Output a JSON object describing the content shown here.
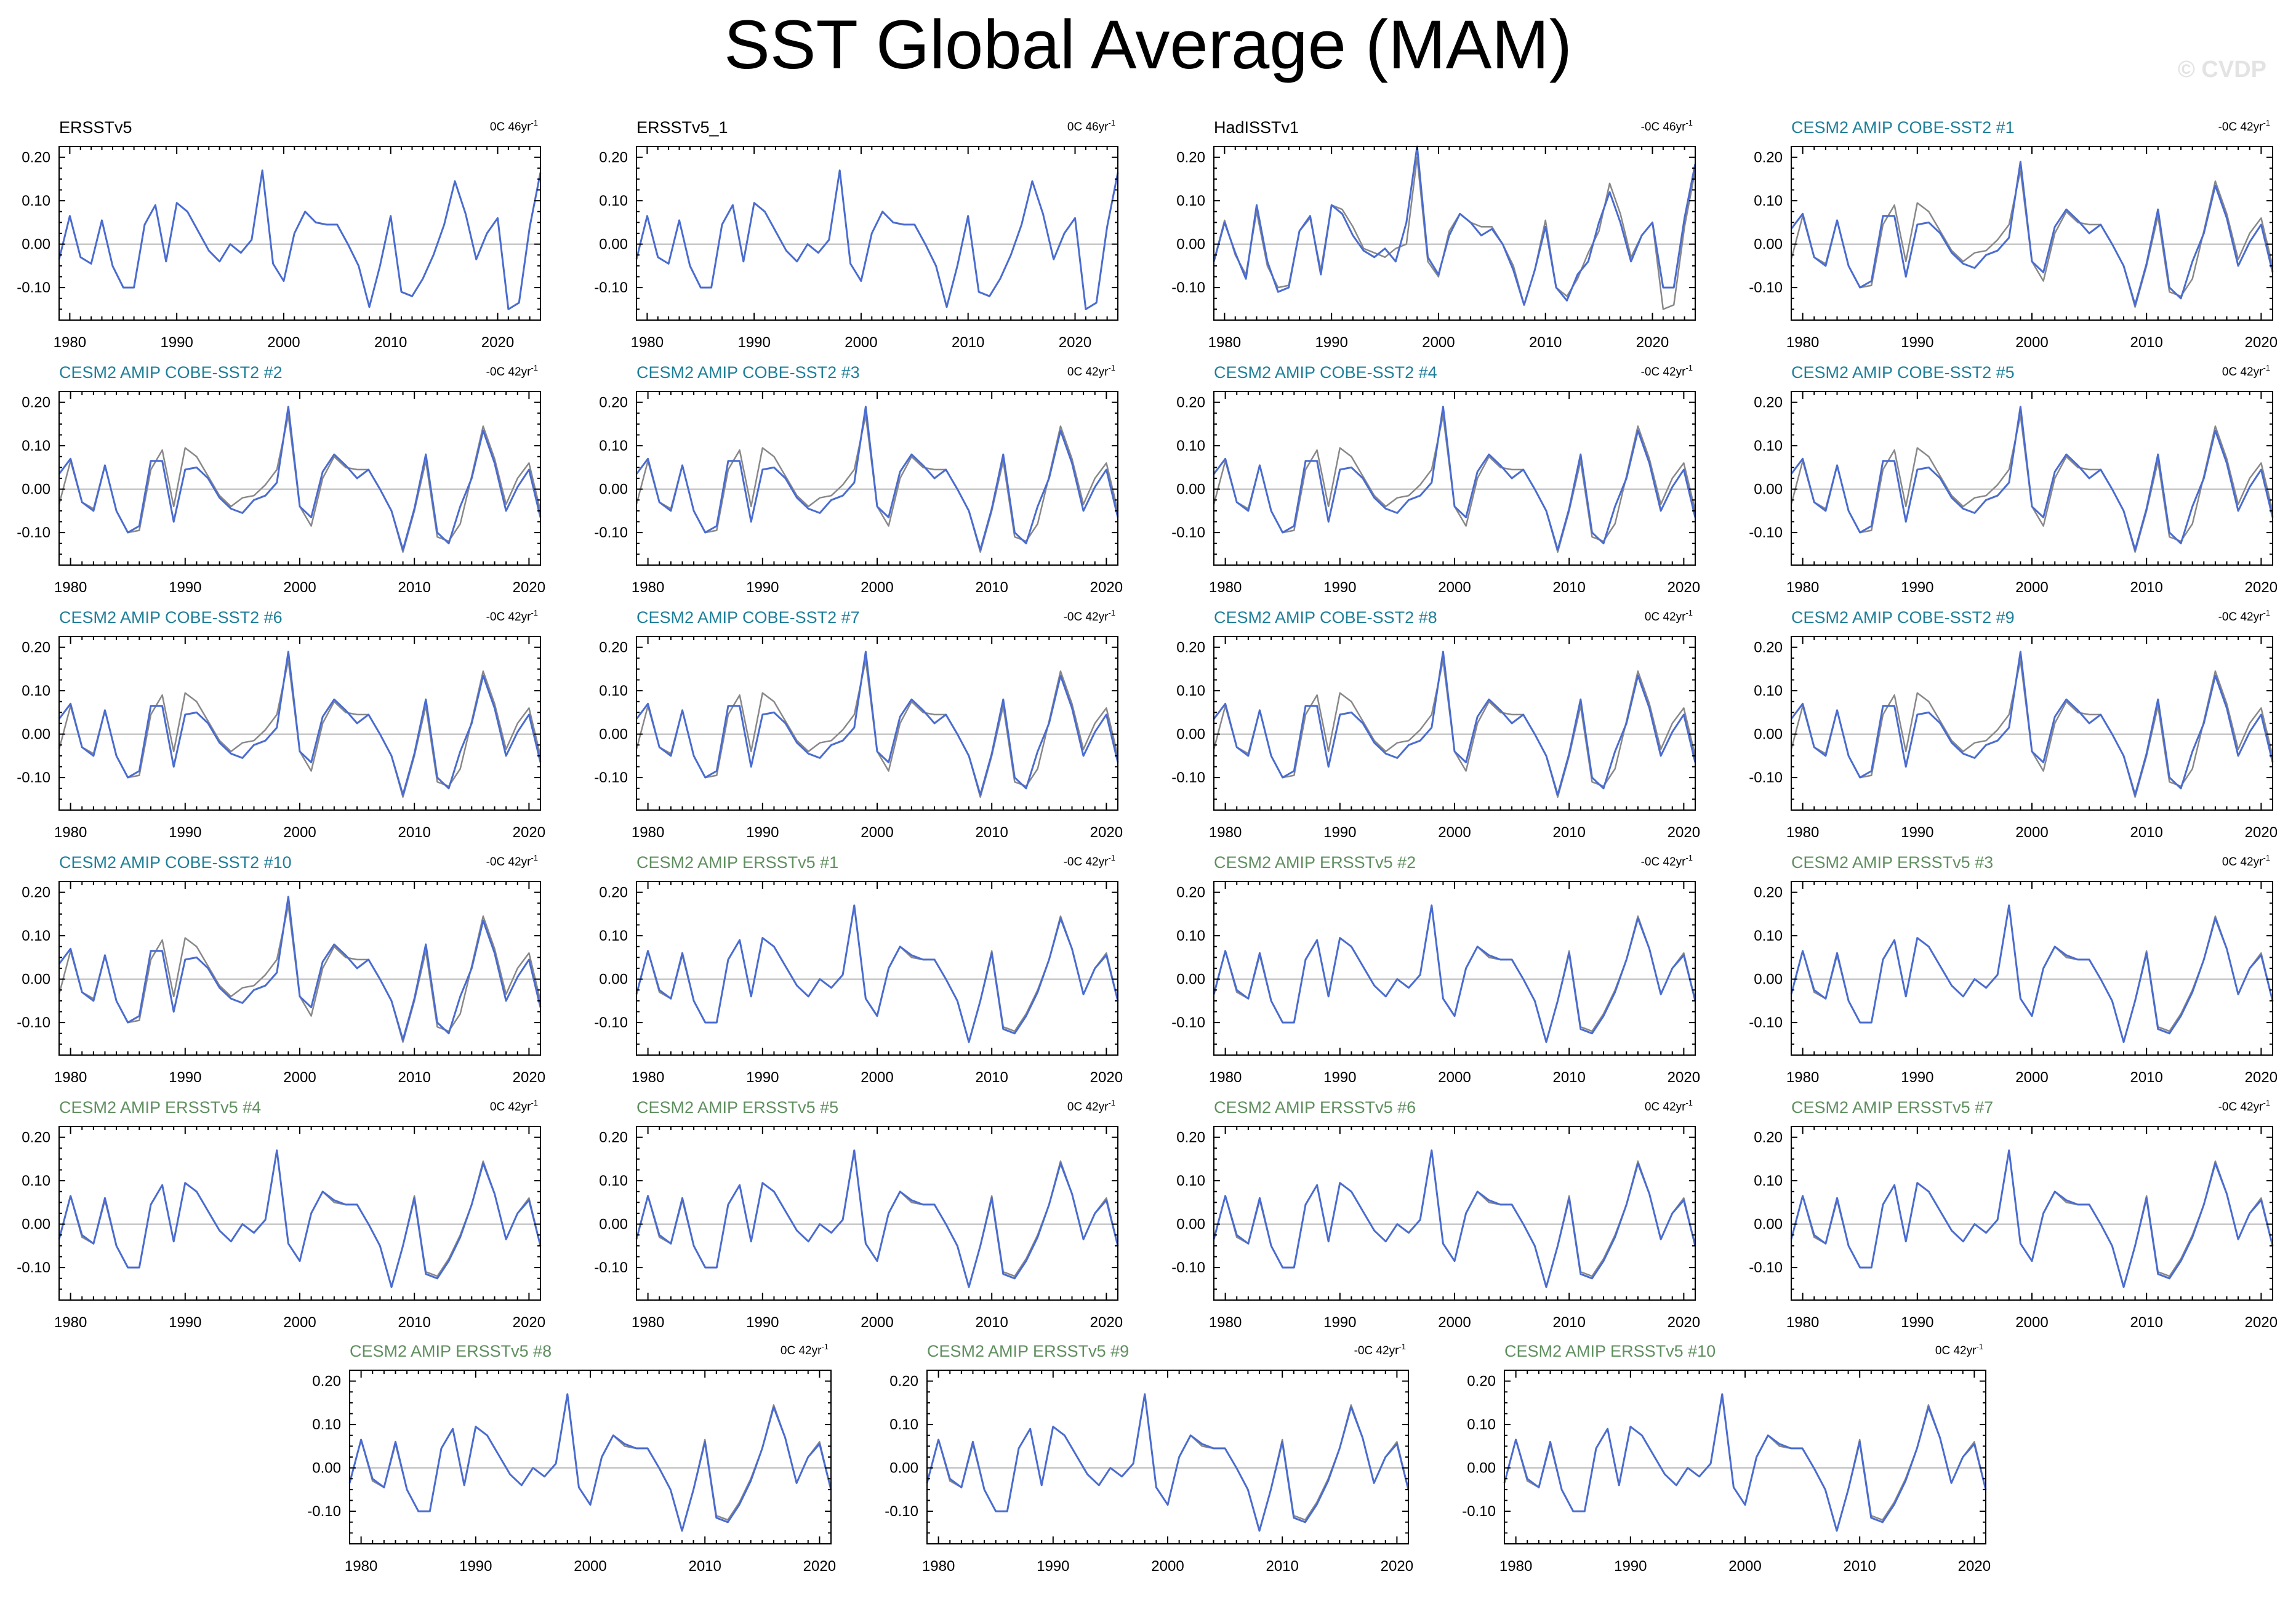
{
  "title": "SST Global Average (MAM)",
  "watermark": "© CVDP",
  "colors": {
    "model_line": "#4a6cd0",
    "obs_line": "#888888",
    "zero_line": "#b5b5b5",
    "label_cobe": "#1e7f99",
    "label_ersst": "#5f8f5f",
    "label_obs": "#000000"
  },
  "chart_data": {
    "type": "line",
    "ylabel": "",
    "xlabel": "",
    "yticks": [
      0.2,
      0.1,
      0.0,
      -0.1
    ],
    "ytick_labels": [
      "0.20",
      "0.10",
      "0.00",
      "-0.10"
    ],
    "xticks": [
      1980,
      1990,
      2000,
      2010,
      2020
    ],
    "ylim": [
      -0.175,
      0.225
    ],
    "years_obs": [
      1979,
      2024
    ],
    "years_model": [
      1979,
      2021
    ],
    "grid": false,
    "zero_line": true,
    "panels": [
      {
        "id": "ersstv5",
        "label": "ERSSTv5",
        "label_group": "obs",
        "trend": "0C 46yr",
        "overlay": false,
        "series": "ersst",
        "years": "obs"
      },
      {
        "id": "ersstv5_1",
        "label": "ERSSTv5_1",
        "label_group": "obs",
        "trend": "0C 46yr",
        "overlay": false,
        "series": "ersst",
        "years": "obs"
      },
      {
        "id": "hadisstv1",
        "label": "HadISSTv1",
        "label_group": "obs",
        "trend": "-0C 46yr",
        "overlay": true,
        "series": "hadisst",
        "years": "obs"
      },
      {
        "id": "cobe1",
        "label": "CESM2 AMIP COBE-SST2 #1",
        "label_group": "cobe",
        "trend": "-0C 42yr",
        "overlay": true,
        "series": "cobe",
        "years": "model"
      },
      {
        "id": "cobe2",
        "label": "CESM2 AMIP COBE-SST2 #2",
        "label_group": "cobe",
        "trend": "-0C 42yr",
        "overlay": true,
        "series": "cobe",
        "years": "model"
      },
      {
        "id": "cobe3",
        "label": "CESM2 AMIP COBE-SST2 #3",
        "label_group": "cobe",
        "trend": "0C 42yr",
        "overlay": true,
        "series": "cobe",
        "years": "model"
      },
      {
        "id": "cobe4",
        "label": "CESM2 AMIP COBE-SST2 #4",
        "label_group": "cobe",
        "trend": "-0C 42yr",
        "overlay": true,
        "series": "cobe",
        "years": "model"
      },
      {
        "id": "cobe5",
        "label": "CESM2 AMIP COBE-SST2 #5",
        "label_group": "cobe",
        "trend": "0C 42yr",
        "overlay": true,
        "series": "cobe",
        "years": "model"
      },
      {
        "id": "cobe6",
        "label": "CESM2 AMIP COBE-SST2 #6",
        "label_group": "cobe",
        "trend": "-0C 42yr",
        "overlay": true,
        "series": "cobe",
        "years": "model"
      },
      {
        "id": "cobe7",
        "label": "CESM2 AMIP COBE-SST2 #7",
        "label_group": "cobe",
        "trend": "-0C 42yr",
        "overlay": true,
        "series": "cobe",
        "years": "model"
      },
      {
        "id": "cobe8",
        "label": "CESM2 AMIP COBE-SST2 #8",
        "label_group": "cobe",
        "trend": "0C 42yr",
        "overlay": true,
        "series": "cobe",
        "years": "model"
      },
      {
        "id": "cobe9",
        "label": "CESM2 AMIP COBE-SST2 #9",
        "label_group": "cobe",
        "trend": "-0C 42yr",
        "overlay": true,
        "series": "cobe",
        "years": "model"
      },
      {
        "id": "cobe10",
        "label": "CESM2 AMIP COBE-SST2 #10",
        "label_group": "cobe",
        "trend": "-0C 42yr",
        "overlay": true,
        "series": "cobe",
        "years": "model"
      },
      {
        "id": "ersst1",
        "label": "CESM2 AMIP ERSSTv5 #1",
        "label_group": "ersst",
        "trend": "-0C 42yr",
        "overlay": true,
        "series": "model_ersst",
        "years": "model"
      },
      {
        "id": "ersst2",
        "label": "CESM2 AMIP ERSSTv5 #2",
        "label_group": "ersst",
        "trend": "-0C 42yr",
        "overlay": true,
        "series": "model_ersst",
        "years": "model"
      },
      {
        "id": "ersst3",
        "label": "CESM2 AMIP ERSSTv5 #3",
        "label_group": "ersst",
        "trend": "0C 42yr",
        "overlay": true,
        "series": "model_ersst",
        "years": "model"
      },
      {
        "id": "ersst4",
        "label": "CESM2 AMIP ERSSTv5 #4",
        "label_group": "ersst",
        "trend": "0C 42yr",
        "overlay": true,
        "series": "model_ersst",
        "years": "model"
      },
      {
        "id": "ersst5",
        "label": "CESM2 AMIP ERSSTv5 #5",
        "label_group": "ersst",
        "trend": "0C 42yr",
        "overlay": true,
        "series": "model_ersst",
        "years": "model"
      },
      {
        "id": "ersst6",
        "label": "CESM2 AMIP ERSSTv5 #6",
        "label_group": "ersst",
        "trend": "0C 42yr",
        "overlay": true,
        "series": "model_ersst",
        "years": "model"
      },
      {
        "id": "ersst7",
        "label": "CESM2 AMIP ERSSTv5 #7",
        "label_group": "ersst",
        "trend": "-0C 42yr",
        "overlay": true,
        "series": "model_ersst",
        "years": "model"
      },
      {
        "id": "ersst8",
        "label": "CESM2 AMIP ERSSTv5 #8",
        "label_group": "ersst",
        "trend": "0C 42yr",
        "overlay": true,
        "series": "model_ersst",
        "years": "model"
      },
      {
        "id": "ersst9",
        "label": "CESM2 AMIP ERSSTv5 #9",
        "label_group": "ersst",
        "trend": "-0C 42yr",
        "overlay": true,
        "series": "model_ersst",
        "years": "model"
      },
      {
        "id": "ersst10",
        "label": "CESM2 AMIP ERSSTv5 #10",
        "label_group": "ersst",
        "trend": "0C 42yr",
        "overlay": true,
        "series": "model_ersst",
        "years": "model"
      }
    ],
    "series": {
      "ersst": [
        -0.035,
        0.065,
        -0.03,
        -0.045,
        0.055,
        -0.05,
        -0.1,
        -0.1,
        0.045,
        0.09,
        -0.04,
        0.095,
        0.075,
        0.03,
        -0.015,
        -0.04,
        0.0,
        -0.02,
        0.01,
        0.17,
        -0.045,
        -0.085,
        0.025,
        0.075,
        0.05,
        0.045,
        0.045,
        0.0,
        -0.05,
        -0.145,
        -0.05,
        0.065,
        -0.11,
        -0.12,
        -0.08,
        -0.025,
        0.045,
        0.145,
        0.07,
        -0.035,
        0.025,
        0.06,
        -0.15,
        -0.135,
        0.04,
        0.165
      ],
      "hadisst": [
        -0.04,
        0.05,
        -0.02,
        -0.08,
        0.09,
        -0.04,
        -0.11,
        -0.1,
        0.03,
        0.065,
        -0.07,
        0.09,
        0.07,
        0.02,
        -0.015,
        -0.03,
        -0.01,
        -0.04,
        0.05,
        0.225,
        -0.03,
        -0.07,
        0.02,
        0.07,
        0.05,
        0.02,
        0.035,
        0.0,
        -0.06,
        -0.14,
        -0.06,
        0.04,
        -0.1,
        -0.13,
        -0.07,
        -0.04,
        0.05,
        0.12,
        0.05,
        -0.04,
        0.02,
        0.05,
        -0.1,
        -0.1,
        0.06,
        0.185
      ],
      "hadisst_obs": [
        -0.04,
        0.055,
        -0.025,
        -0.07,
        0.075,
        -0.05,
        -0.1,
        -0.095,
        0.03,
        0.06,
        -0.06,
        0.09,
        0.08,
        0.04,
        -0.01,
        -0.02,
        -0.03,
        -0.01,
        0.0,
        0.2,
        -0.04,
        -0.075,
        0.03,
        0.07,
        0.05,
        0.04,
        0.04,
        0.0,
        -0.05,
        -0.14,
        -0.06,
        0.055,
        -0.1,
        -0.12,
        -0.08,
        -0.02,
        0.03,
        0.14,
        0.07,
        -0.03,
        0.02,
        0.05,
        -0.15,
        -0.14,
        0.04,
        0.17
      ],
      "cobe": [
        0.035,
        0.07,
        -0.03,
        -0.05,
        0.055,
        -0.05,
        -0.1,
        -0.085,
        0.065,
        0.065,
        -0.075,
        0.045,
        0.05,
        0.025,
        -0.02,
        -0.045,
        -0.055,
        -0.025,
        -0.015,
        0.015,
        0.19,
        -0.04,
        -0.065,
        0.04,
        0.08,
        0.055,
        0.025,
        0.045,
        0.0,
        -0.05,
        -0.14,
        -0.045,
        0.08,
        -0.1,
        -0.125,
        -0.04,
        0.025,
        0.135,
        0.06,
        -0.05,
        0.005,
        0.045,
        -0.065
      ],
      "cobe_obs": [
        -0.035,
        0.065,
        -0.03,
        -0.045,
        0.055,
        -0.05,
        -0.1,
        -0.095,
        0.045,
        0.09,
        -0.04,
        0.095,
        0.075,
        0.03,
        -0.015,
        -0.04,
        -0.02,
        -0.015,
        0.01,
        0.045,
        0.17,
        -0.04,
        -0.085,
        0.025,
        0.075,
        0.05,
        0.045,
        0.045,
        0.0,
        -0.05,
        -0.145,
        -0.05,
        0.065,
        -0.11,
        -0.12,
        -0.08,
        0.03,
        0.145,
        0.07,
        -0.035,
        0.025,
        0.06,
        -0.05
      ],
      "model_ersst": [
        -0.035,
        0.065,
        -0.025,
        -0.045,
        0.06,
        -0.05,
        -0.1,
        -0.1,
        0.045,
        0.09,
        -0.04,
        0.095,
        0.075,
        0.03,
        -0.015,
        -0.04,
        0.0,
        -0.02,
        0.01,
        0.17,
        -0.045,
        -0.085,
        0.025,
        0.075,
        0.055,
        0.045,
        0.045,
        0.0,
        -0.05,
        -0.145,
        -0.05,
        0.06,
        -0.115,
        -0.125,
        -0.085,
        -0.03,
        0.045,
        0.14,
        0.07,
        -0.035,
        0.025,
        0.055,
        -0.05
      ],
      "model_ersst_obs": [
        -0.035,
        0.065,
        -0.03,
        -0.045,
        0.055,
        -0.05,
        -0.1,
        -0.1,
        0.045,
        0.09,
        -0.04,
        0.095,
        0.075,
        0.03,
        -0.015,
        -0.04,
        0.0,
        -0.02,
        0.01,
        0.17,
        -0.045,
        -0.085,
        0.025,
        0.075,
        0.05,
        0.045,
        0.045,
        0.0,
        -0.05,
        -0.145,
        -0.05,
        0.065,
        -0.11,
        -0.12,
        -0.08,
        -0.025,
        0.045,
        0.145,
        0.07,
        -0.035,
        0.025,
        0.06,
        -0.05
      ]
    }
  }
}
